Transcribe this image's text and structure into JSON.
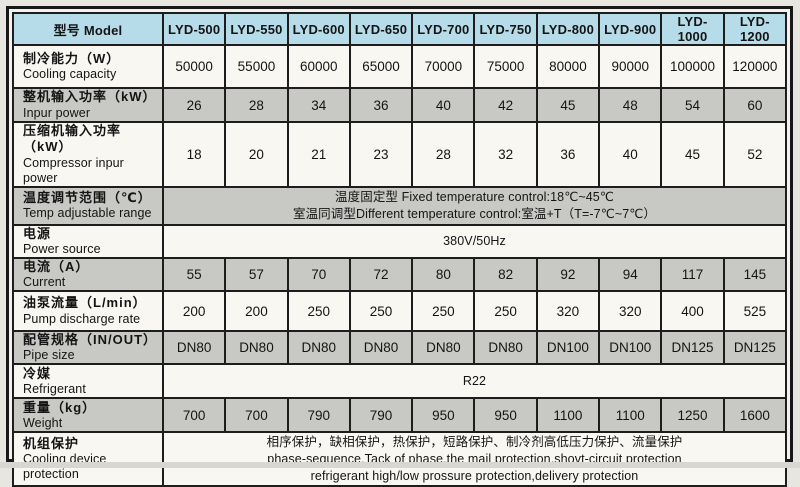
{
  "table": {
    "header": {
      "label": "型号 Model",
      "models": [
        "LYD-500",
        "LYD-550",
        "LYD-600",
        "LYD-650",
        "LYD-700",
        "LYD-750",
        "LYD-800",
        "LYD-900",
        "LYD-1000",
        "LYD-1200"
      ],
      "bg_color": "#b7dce9"
    },
    "colors": {
      "row_white": "#f8f7f2",
      "row_gray": "#c8c9c5",
      "border": "#1d1d1d"
    },
    "rows": [
      {
        "id": "cooling-capacity",
        "label_cn": "制冷能力（W）",
        "label_en": "Cooling capacity",
        "shade": "white",
        "values": [
          "50000",
          "55000",
          "60000",
          "65000",
          "70000",
          "75000",
          "80000",
          "90000",
          "100000",
          "120000"
        ]
      },
      {
        "id": "input-power",
        "label_cn": "整机输入功率（kW）",
        "label_en": "Inpur power",
        "shade": "gray",
        "values": [
          "26",
          "28",
          "34",
          "36",
          "40",
          "42",
          "45",
          "48",
          "54",
          "60"
        ]
      },
      {
        "id": "compressor-input-power",
        "label_cn": "压缩机输入功率（kW）",
        "label_en": "Compressor inpur power",
        "shade": "white",
        "values": [
          "18",
          "20",
          "21",
          "23",
          "28",
          "32",
          "36",
          "40",
          "45",
          "52"
        ]
      },
      {
        "id": "temp-adjustable-range",
        "label_cn": "温度调节范围（℃）",
        "label_en": "Temp adjustable range",
        "shade": "gray",
        "merged_lines": [
          "温度固定型 Fixed temperature control:18℃~45℃",
          "室温同调型Different temperature control:室温+T（T=-7℃~7℃）"
        ]
      },
      {
        "id": "power-source",
        "label_cn": "电源",
        "label_en": "Power source",
        "shade": "white",
        "merged_lines": [
          "380V/50Hz"
        ]
      },
      {
        "id": "current",
        "label_cn": "电流（A）",
        "label_en": "Current",
        "shade": "gray",
        "values": [
          "55",
          "57",
          "70",
          "72",
          "80",
          "82",
          "92",
          "94",
          "117",
          "145"
        ]
      },
      {
        "id": "pump-discharge-rate",
        "label_cn": "油泵流量（L/min）",
        "label_en": "Pump discharge rate",
        "shade": "white",
        "values": [
          "200",
          "200",
          "250",
          "250",
          "250",
          "250",
          "320",
          "320",
          "400",
          "525"
        ]
      },
      {
        "id": "pipe-size",
        "label_cn": "配管规格（IN/OUT）",
        "label_en": "Pipe size",
        "shade": "gray",
        "values": [
          "DN80",
          "DN80",
          "DN80",
          "DN80",
          "DN80",
          "DN80",
          "DN100",
          "DN100",
          "DN125",
          "DN125"
        ]
      },
      {
        "id": "refrigerant",
        "label_cn": "冷媒",
        "label_en": "Refrigerant",
        "shade": "white",
        "merged_lines": [
          "R22"
        ]
      },
      {
        "id": "weight",
        "label_cn": "重量（kg）",
        "label_en": "Weight",
        "shade": "gray",
        "values": [
          "700",
          "700",
          "790",
          "790",
          "950",
          "950",
          "1100",
          "1100",
          "1250",
          "1600"
        ]
      },
      {
        "id": "protection",
        "label_cn": "机组保护",
        "label_en": "Cooling device protection",
        "shade": "white",
        "merged_lines": [
          "相序保护，缺相保护，热保护，短路保护、制冷剂高低压力保护、流量保护",
          "phase-sequence,Tack of phase,the mail protection,shovt-circuit protection",
          "refrigerant high/low prossure protection,delivery protection"
        ]
      }
    ]
  }
}
